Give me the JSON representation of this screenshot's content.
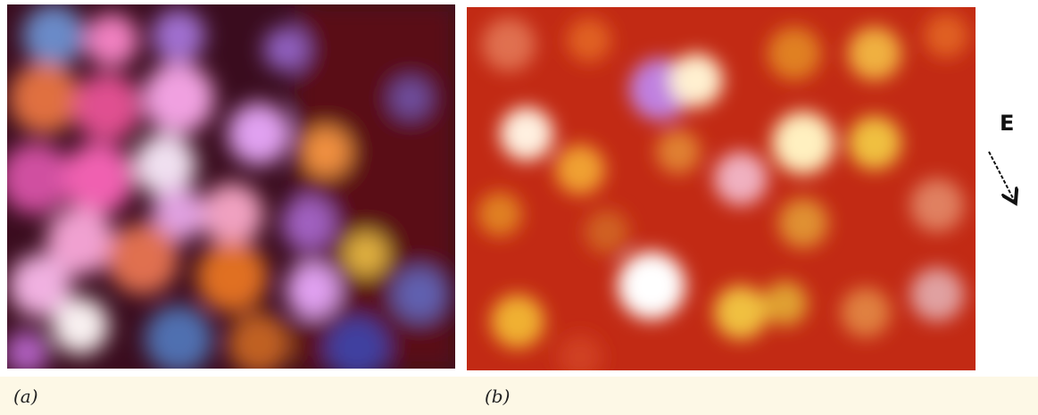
{
  "panels": [
    {
      "label": "(a)"
    },
    {
      "label": "(b)",
      "annotation": "E"
    }
  ]
}
